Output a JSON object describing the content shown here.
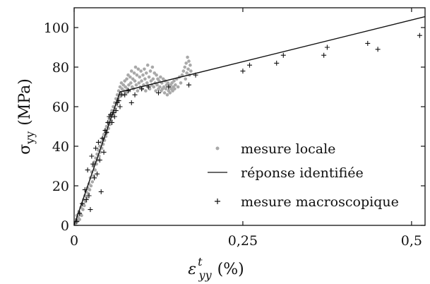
{
  "chart_data": {
    "type": "scatter",
    "title": "",
    "xlabel": {
      "symbol": "ε",
      "superscript": "t",
      "subscript": "yy",
      "unit": "(%)"
    },
    "ylabel": {
      "symbol": "σ",
      "subscript": "yy",
      "unit": "(MPa)"
    },
    "xlim": [
      0,
      0.52
    ],
    "ylim": [
      0,
      110
    ],
    "x_ticks": [
      {
        "value": 0,
        "label": "0"
      },
      {
        "value": 0.25,
        "label": "0,25"
      },
      {
        "value": 0.5,
        "label": "0,5"
      }
    ],
    "y_ticks": [
      {
        "value": 0,
        "label": "0"
      },
      {
        "value": 20,
        "label": "20"
      },
      {
        "value": 40,
        "label": "40"
      },
      {
        "value": 60,
        "label": "60"
      },
      {
        "value": 80,
        "label": "80"
      },
      {
        "value": 100,
        "label": "100"
      }
    ],
    "grid": false,
    "legend_position": "bottom-right",
    "series": [
      {
        "name": "mesure locale",
        "marker": "dot",
        "color": "#a9a9a9",
        "points": [
          [
            0.002,
            1
          ],
          [
            0.003,
            3
          ],
          [
            0.004,
            5
          ],
          [
            0.005,
            2
          ],
          [
            0.006,
            4
          ],
          [
            0.007,
            7
          ],
          [
            0.008,
            3
          ],
          [
            0.009,
            6
          ],
          [
            0.01,
            9
          ],
          [
            0.011,
            5
          ],
          [
            0.012,
            11
          ],
          [
            0.013,
            8
          ],
          [
            0.014,
            13
          ],
          [
            0.015,
            10
          ],
          [
            0.016,
            15
          ],
          [
            0.017,
            12
          ],
          [
            0.018,
            17
          ],
          [
            0.019,
            14
          ],
          [
            0.02,
            19
          ],
          [
            0.021,
            16
          ],
          [
            0.022,
            21
          ],
          [
            0.023,
            18
          ],
          [
            0.024,
            24
          ],
          [
            0.025,
            20
          ],
          [
            0.026,
            27
          ],
          [
            0.027,
            22
          ],
          [
            0.028,
            30
          ],
          [
            0.029,
            25
          ],
          [
            0.03,
            32
          ],
          [
            0.031,
            28
          ],
          [
            0.032,
            34
          ],
          [
            0.033,
            31
          ],
          [
            0.034,
            36
          ],
          [
            0.035,
            33
          ],
          [
            0.036,
            38
          ],
          [
            0.037,
            35
          ],
          [
            0.038,
            40
          ],
          [
            0.039,
            37
          ],
          [
            0.04,
            42
          ],
          [
            0.041,
            39
          ],
          [
            0.042,
            44
          ],
          [
            0.043,
            41
          ],
          [
            0.044,
            46
          ],
          [
            0.045,
            43
          ],
          [
            0.046,
            48
          ],
          [
            0.047,
            45
          ],
          [
            0.048,
            50
          ],
          [
            0.049,
            47
          ],
          [
            0.05,
            52
          ],
          [
            0.051,
            49
          ],
          [
            0.052,
            54
          ],
          [
            0.053,
            51
          ],
          [
            0.054,
            56
          ],
          [
            0.055,
            53
          ],
          [
            0.056,
            58
          ],
          [
            0.057,
            55
          ],
          [
            0.058,
            60
          ],
          [
            0.059,
            57
          ],
          [
            0.06,
            62
          ],
          [
            0.061,
            59
          ],
          [
            0.062,
            64
          ],
          [
            0.063,
            61
          ],
          [
            0.064,
            66
          ],
          [
            0.065,
            63
          ],
          [
            0.066,
            68
          ],
          [
            0.067,
            65
          ],
          [
            0.068,
            70
          ],
          [
            0.069,
            67
          ],
          [
            0.07,
            72
          ],
          [
            0.071,
            69
          ],
          [
            0.072,
            66
          ],
          [
            0.073,
            71
          ],
          [
            0.074,
            68
          ],
          [
            0.075,
            73
          ],
          [
            0.076,
            70
          ],
          [
            0.077,
            67
          ],
          [
            0.078,
            74
          ],
          [
            0.079,
            69
          ],
          [
            0.08,
            76
          ],
          [
            0.081,
            71
          ],
          [
            0.082,
            68
          ],
          [
            0.083,
            75
          ],
          [
            0.084,
            72
          ],
          [
            0.085,
            78
          ],
          [
            0.086,
            70
          ],
          [
            0.087,
            74
          ],
          [
            0.088,
            69
          ],
          [
            0.089,
            77
          ],
          [
            0.09,
            73
          ],
          [
            0.091,
            80
          ],
          [
            0.092,
            71
          ],
          [
            0.093,
            76
          ],
          [
            0.094,
            68
          ],
          [
            0.095,
            79
          ],
          [
            0.096,
            72
          ],
          [
            0.097,
            75
          ],
          [
            0.098,
            70
          ],
          [
            0.099,
            78
          ],
          [
            0.1,
            73
          ],
          [
            0.101,
            69
          ],
          [
            0.102,
            76
          ],
          [
            0.103,
            71
          ],
          [
            0.104,
            79
          ],
          [
            0.105,
            74
          ],
          [
            0.106,
            68
          ],
          [
            0.107,
            77
          ],
          [
            0.108,
            72
          ],
          [
            0.109,
            81
          ],
          [
            0.11,
            70
          ],
          [
            0.111,
            75
          ],
          [
            0.112,
            69
          ],
          [
            0.113,
            78
          ],
          [
            0.114,
            73
          ],
          [
            0.115,
            71
          ],
          [
            0.116,
            80
          ],
          [
            0.117,
            74
          ],
          [
            0.118,
            70
          ],
          [
            0.119,
            77
          ],
          [
            0.12,
            72
          ],
          [
            0.121,
            68
          ],
          [
            0.122,
            76
          ],
          [
            0.123,
            71
          ],
          [
            0.124,
            74
          ],
          [
            0.125,
            69
          ],
          [
            0.126,
            73
          ],
          [
            0.127,
            70
          ],
          [
            0.128,
            75
          ],
          [
            0.129,
            68
          ],
          [
            0.13,
            72
          ],
          [
            0.131,
            69
          ],
          [
            0.132,
            74
          ],
          [
            0.133,
            70
          ],
          [
            0.134,
            67
          ],
          [
            0.135,
            73
          ],
          [
            0.136,
            69
          ],
          [
            0.137,
            71
          ],
          [
            0.138,
            66
          ],
          [
            0.139,
            72
          ],
          [
            0.14,
            68
          ],
          [
            0.141,
            70
          ],
          [
            0.142,
            67
          ],
          [
            0.143,
            71
          ],
          [
            0.144,
            69
          ],
          [
            0.145,
            72
          ],
          [
            0.146,
            68
          ],
          [
            0.147,
            70
          ],
          [
            0.148,
            73
          ],
          [
            0.149,
            69
          ],
          [
            0.15,
            71
          ],
          [
            0.152,
            74
          ],
          [
            0.154,
            70
          ],
          [
            0.156,
            75
          ],
          [
            0.158,
            72
          ],
          [
            0.16,
            76
          ],
          [
            0.162,
            78
          ],
          [
            0.164,
            80
          ],
          [
            0.165,
            74
          ],
          [
            0.166,
            82
          ],
          [
            0.167,
            77
          ],
          [
            0.168,
            85
          ],
          [
            0.169,
            79
          ],
          [
            0.17,
            83
          ],
          [
            0.171,
            76
          ],
          [
            0.172,
            81
          ],
          [
            0.173,
            78
          ]
        ]
      },
      {
        "name": "réponse identifiée",
        "marker": "line",
        "color": "#111111",
        "points": [
          [
            0,
            0
          ],
          [
            0.068,
            67.5
          ],
          [
            0.075,
            68
          ],
          [
            0.52,
            105.5
          ]
        ]
      },
      {
        "name": "mesure macroscopique",
        "marker": "plus",
        "color": "#111111",
        "points": [
          [
            0.004,
            2
          ],
          [
            0.008,
            6
          ],
          [
            0.012,
            11
          ],
          [
            0.016,
            18
          ],
          [
            0.018,
            13
          ],
          [
            0.02,
            28
          ],
          [
            0.022,
            15
          ],
          [
            0.024,
            8
          ],
          [
            0.026,
            35
          ],
          [
            0.028,
            31
          ],
          [
            0.03,
            24
          ],
          [
            0.032,
            39
          ],
          [
            0.034,
            26
          ],
          [
            0.036,
            42
          ],
          [
            0.038,
            33
          ],
          [
            0.04,
            17
          ],
          [
            0.042,
            44
          ],
          [
            0.044,
            37
          ],
          [
            0.046,
            48
          ],
          [
            0.048,
            47
          ],
          [
            0.05,
            52
          ],
          [
            0.052,
            55
          ],
          [
            0.054,
            56
          ],
          [
            0.056,
            52
          ],
          [
            0.058,
            57
          ],
          [
            0.06,
            55
          ],
          [
            0.062,
            58
          ],
          [
            0.064,
            62
          ],
          [
            0.066,
            63
          ],
          [
            0.068,
            60
          ],
          [
            0.07,
            66
          ],
          [
            0.075,
            66
          ],
          [
            0.08,
            68
          ],
          [
            0.085,
            62
          ],
          [
            0.09,
            66
          ],
          [
            0.1,
            69
          ],
          [
            0.11,
            70
          ],
          [
            0.125,
            67
          ],
          [
            0.14,
            70
          ],
          [
            0.17,
            71
          ],
          [
            0.18,
            76
          ],
          [
            0.25,
            78
          ],
          [
            0.26,
            81
          ],
          [
            0.3,
            82
          ],
          [
            0.31,
            86
          ],
          [
            0.37,
            86
          ],
          [
            0.375,
            90
          ],
          [
            0.435,
            92
          ],
          [
            0.45,
            89
          ],
          [
            0.512,
            96
          ]
        ]
      }
    ]
  }
}
